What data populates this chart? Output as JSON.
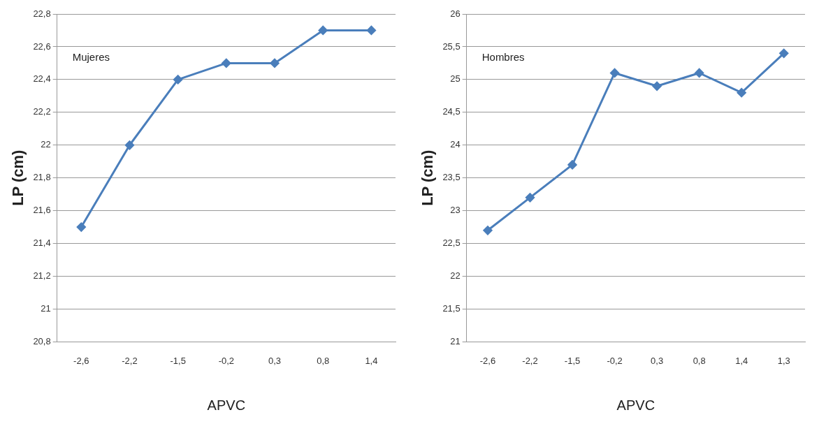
{
  "chart_data": [
    {
      "type": "line",
      "xlabel": "APVC",
      "ylabel": "LP (cm)",
      "categories": [
        "-2,6",
        "-2,2",
        "-1,5",
        "-0,2",
        "0,3",
        "0,8",
        "1,4"
      ],
      "series": [
        {
          "color": "#4a7ebb",
          "values": [
            21.5,
            22.0,
            22.4,
            22.5,
            22.5,
            22.7,
            22.7
          ]
        }
      ],
      "ylim": [
        20.8,
        22.8
      ],
      "yticks": [
        {
          "value": 20.8,
          "label": "20,8"
        },
        {
          "value": 21,
          "label": "21"
        },
        {
          "value": 21.2,
          "label": "21,2"
        },
        {
          "value": 21.4,
          "label": "21,4"
        },
        {
          "value": 21.6,
          "label": "21,6"
        },
        {
          "value": 21.8,
          "label": "21,8"
        },
        {
          "value": 22,
          "label": "22"
        },
        {
          "value": 22.2,
          "label": "22,2"
        },
        {
          "value": 22.4,
          "label": "22,4"
        },
        {
          "value": 22.6,
          "label": "22,6"
        },
        {
          "value": 22.8,
          "label": "22,8"
        }
      ],
      "grid": "y",
      "marker": "diamond",
      "line_style": "solid",
      "annotations": [
        "Mujeres"
      ]
    },
    {
      "type": "line",
      "xlabel": "APVC",
      "ylabel": "LP (cm)",
      "categories": [
        "-2,6",
        "-2,2",
        "-1,5",
        "-0,2",
        "0,3",
        "0,8",
        "1,4",
        "1,3"
      ],
      "series": [
        {
          "color": "#4a7ebb",
          "values": [
            22.7,
            23.2,
            23.7,
            25.1,
            24.9,
            25.1,
            24.8,
            25.4
          ]
        }
      ],
      "ylim": [
        21,
        26
      ],
      "yticks": [
        {
          "value": 21,
          "label": "21"
        },
        {
          "value": 21.5,
          "label": "21,5"
        },
        {
          "value": 22,
          "label": "22"
        },
        {
          "value": 22.5,
          "label": "22,5"
        },
        {
          "value": 23,
          "label": "23"
        },
        {
          "value": 23.5,
          "label": "23,5"
        },
        {
          "value": 24,
          "label": "24"
        },
        {
          "value": 24.5,
          "label": "24,5"
        },
        {
          "value": 25,
          "label": "25"
        },
        {
          "value": 25.5,
          "label": "25,5"
        },
        {
          "value": 26,
          "label": "26"
        }
      ],
      "grid": "y",
      "marker": "diamond",
      "line_style": "solid",
      "annotations": [
        "Hombres"
      ]
    }
  ]
}
